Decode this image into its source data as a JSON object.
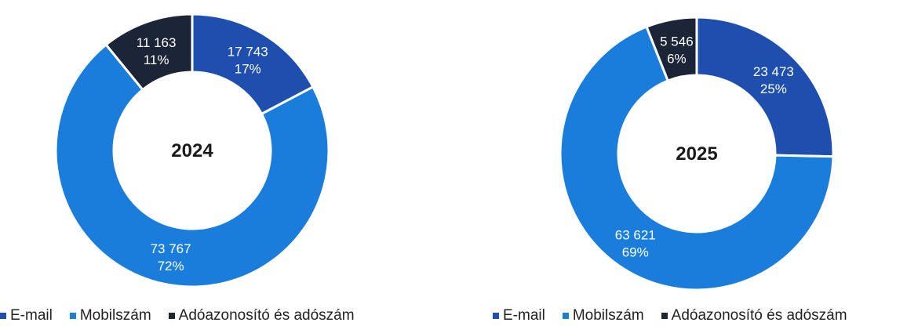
{
  "colors": {
    "email": "#1F4FAE",
    "mobil": "#1A7DDC",
    "ado": "#1B2537",
    "divider": "#ffffff"
  },
  "chart_data": [
    {
      "type": "pie",
      "title": "",
      "center_label": "2024",
      "categories": [
        "E-mail",
        "Mobilszám",
        "Adóazonosító és adószám"
      ],
      "values": [
        17743,
        73767,
        11163
      ],
      "value_labels": [
        "17 743",
        "73 767",
        "11 163"
      ],
      "percent_labels": [
        "17%",
        "72%",
        "11%"
      ],
      "legend": "bottom",
      "legend_entries": [
        "E-mail",
        "Mobilszám",
        "Adóazonosító és adószám"
      ]
    },
    {
      "type": "pie",
      "title": "",
      "center_label": "2025",
      "categories": [
        "E-mail",
        "Mobilszám",
        "Adóazonosító és adószám"
      ],
      "values": [
        23473,
        63621,
        5546
      ],
      "value_labels": [
        "23 473",
        "63 621",
        "5 546"
      ],
      "percent_labels": [
        "25%",
        "69%",
        "6%"
      ],
      "legend": "bottom",
      "legend_entries": [
        "E-mail",
        "Mobilszám",
        "Adóazonosító és adószám"
      ]
    }
  ]
}
